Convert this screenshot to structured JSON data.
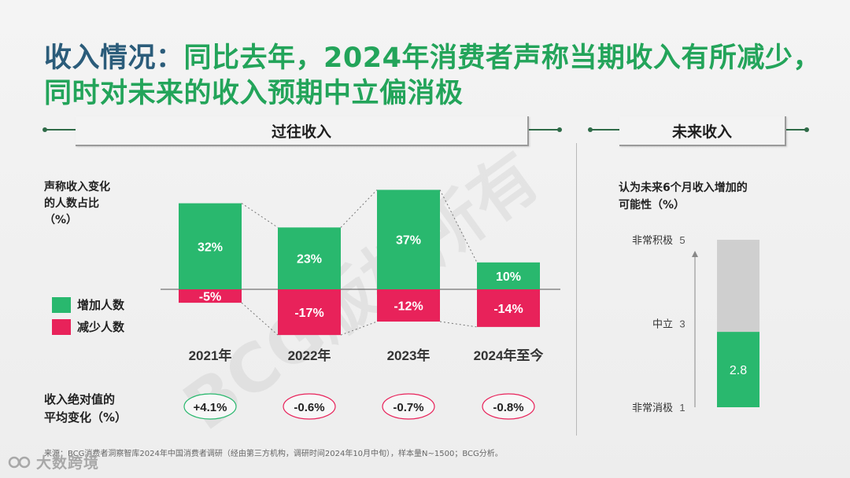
{
  "title": {
    "lead": "收入情况：",
    "rest": "同比去年，2024年消费者声称当期收入有所减少，同时对未来的收入预期中立偏消极"
  },
  "sections": {
    "past": "过往收入",
    "future": "未来收入"
  },
  "left_label": {
    "line1": "声称收入变化",
    "line2": "的人数占比",
    "line3": "（%）"
  },
  "legend": [
    {
      "label": "增加人数",
      "color": "#29b86e"
    },
    {
      "label": "减少人数",
      "color": "#e8225a"
    }
  ],
  "bottom_label": {
    "line1": "收入绝对值的",
    "line2": "平均变化（%）"
  },
  "right_label": {
    "line1": "认为未来6个月收入增加的",
    "line2": "可能性（%）"
  },
  "watermark": "BCG版权所有",
  "footnote": "来源：BCG消费者洞察智库2024年中国消费者调研（经由第三方机构，调研时间2024年10月中旬），样本量N~1500；BCG分析。",
  "logo_text": "大数跨境",
  "colors": {
    "green": "#29b86e",
    "red": "#e8225a",
    "grey": "#cfcfcf",
    "title_green": "#23a45a",
    "title_blue": "#2b5c7a"
  },
  "chart_data": [
    {
      "type": "bar",
      "title": "声称收入变化的人数占比（%）",
      "categories": [
        "2021年",
        "2022年",
        "2023年",
        "2024年至今"
      ],
      "series": [
        {
          "name": "增加人数",
          "values": [
            32,
            23,
            37,
            10
          ],
          "labels": [
            "32%",
            "23%",
            "37%",
            "10%"
          ]
        },
        {
          "name": "减少人数",
          "values": [
            -5,
            -17,
            -12,
            -14
          ],
          "labels": [
            "-5%",
            "-17%",
            "-12%",
            "-14%"
          ]
        }
      ],
      "net_change": {
        "title": "收入绝对值的平均变化（%）",
        "labels": [
          "+4.1%",
          "-0.6%",
          "-0.7%",
          "-0.8%"
        ]
      },
      "ylim": [
        -20,
        40
      ]
    },
    {
      "type": "bar",
      "title": "认为未来6个月收入增加的可能性（%）",
      "value": 2.8,
      "value_label": "2.8",
      "ylim": [
        1,
        5
      ],
      "ticks": [
        {
          "value": 5,
          "num": "5",
          "text": "非常积极"
        },
        {
          "value": 3,
          "num": "3",
          "text": "中立"
        },
        {
          "value": 1,
          "num": "1",
          "text": "非常消极"
        }
      ]
    }
  ]
}
